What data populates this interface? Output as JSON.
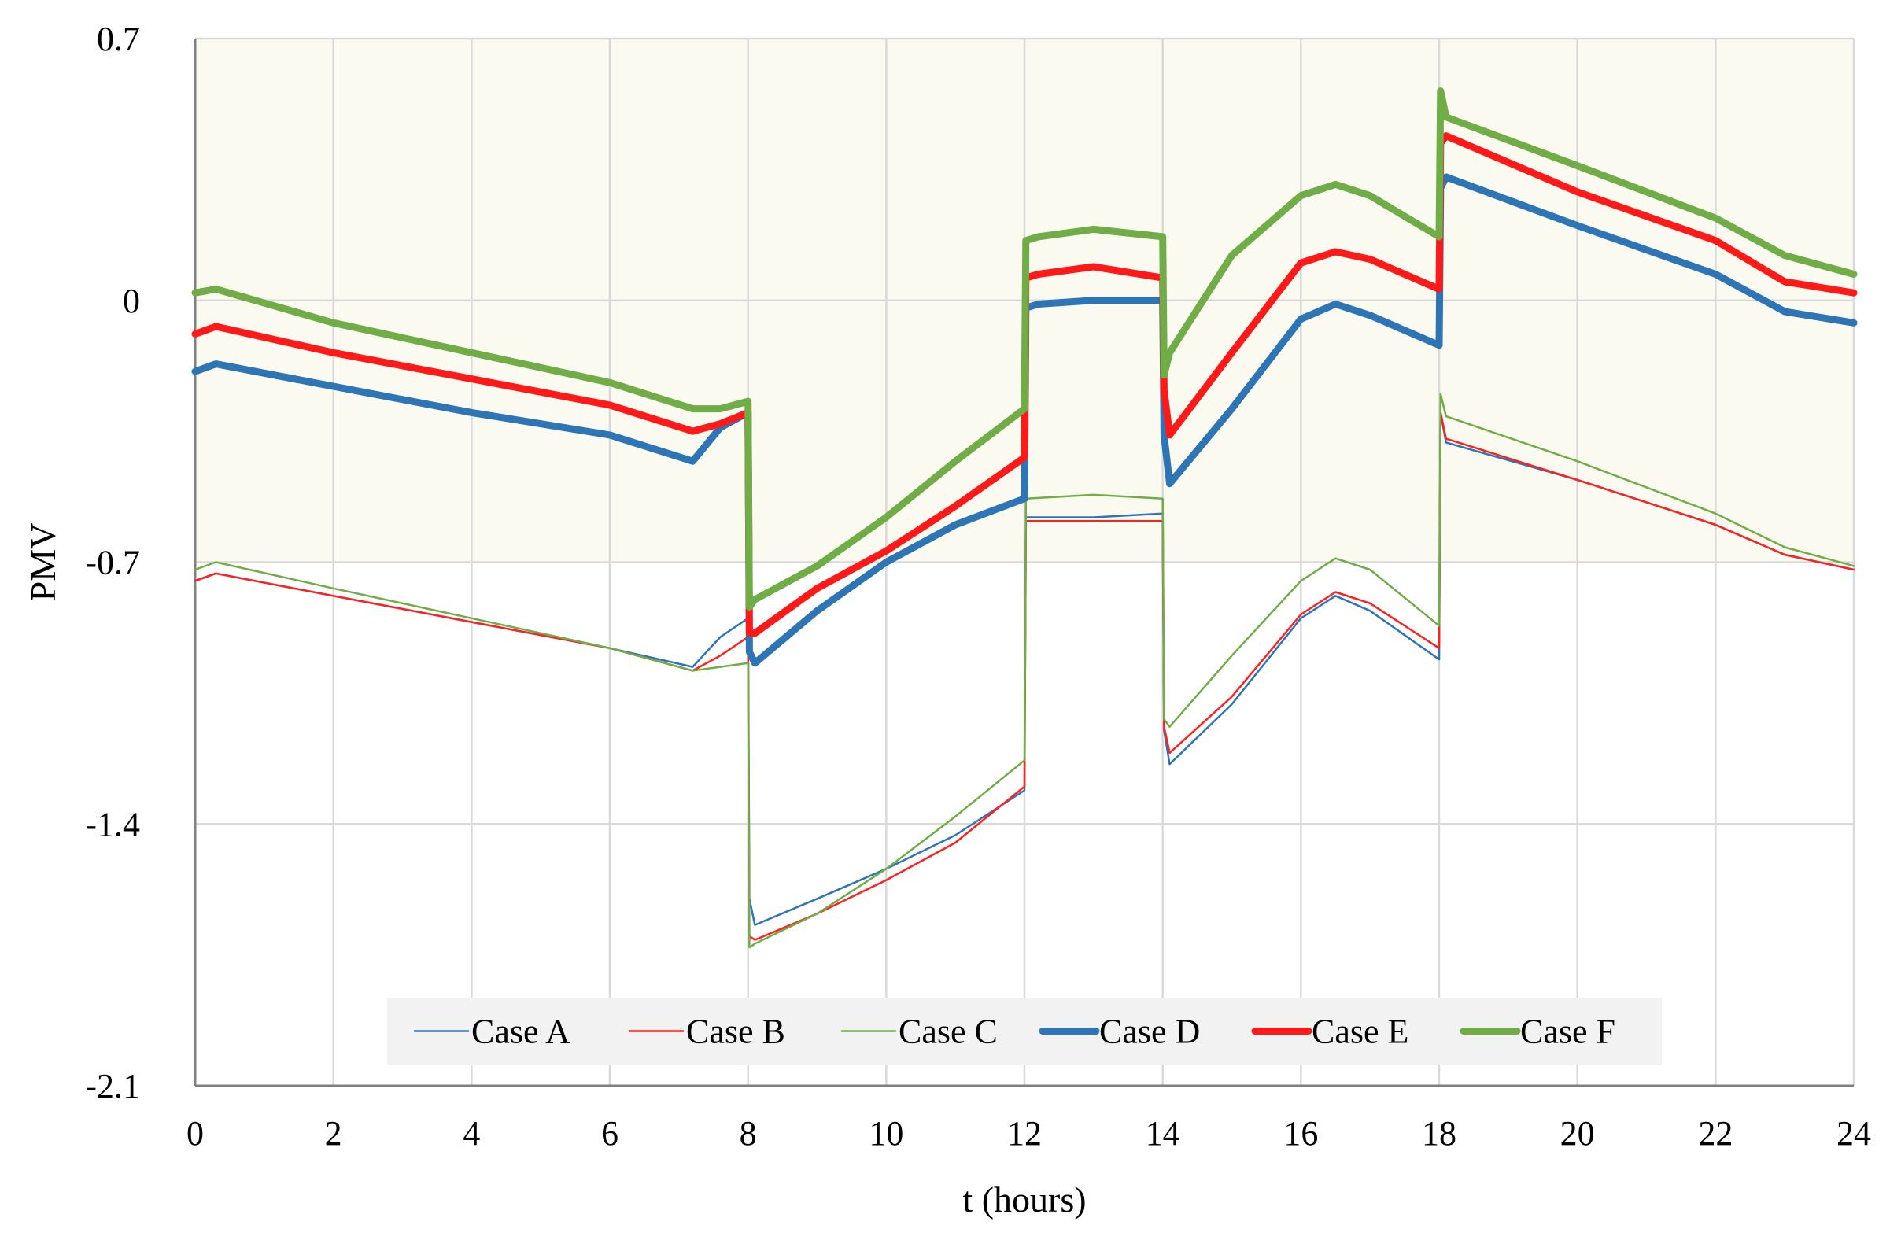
{
  "chart_data": {
    "type": "line",
    "title": "",
    "xlabel": "t (hours)",
    "ylabel": "PMV",
    "xlim": [
      0,
      24
    ],
    "ylim": [
      -2.1,
      0.7
    ],
    "xticks": [
      0,
      2,
      4,
      6,
      8,
      10,
      12,
      14,
      16,
      18,
      20,
      22,
      24
    ],
    "yticks": [
      0.7,
      0,
      -0.7,
      -1.4,
      -2.1
    ],
    "xtick_labels": [
      "0",
      "2",
      "4",
      "6",
      "8",
      "10",
      "12",
      "14",
      "16",
      "18",
      "20",
      "22",
      "24"
    ],
    "ytick_labels": [
      "0.7",
      "0",
      "-0.7",
      "-1.4",
      "-2.1"
    ],
    "grid": true,
    "comfort_band": {
      "from": -0.7,
      "to": 0.7,
      "color": "#fbfaf0"
    },
    "legend_position": "bottom-center",
    "series": [
      {
        "name": "Case A",
        "color": "#2e75b6",
        "width": "thin",
        "x": [
          0,
          0.3,
          2,
          4,
          6,
          7.2,
          7.6,
          8,
          8.02,
          8.1,
          9,
          10,
          11,
          12,
          12.02,
          13,
          14,
          14.02,
          14.1,
          15,
          16,
          16.5,
          17,
          18,
          18.02,
          18.1,
          20,
          22,
          23,
          24
        ],
        "values": [
          -0.75,
          -0.73,
          -0.79,
          -0.86,
          -0.93,
          -0.98,
          -0.9,
          -0.85,
          -1.6,
          -1.67,
          -1.6,
          -1.52,
          -1.43,
          -1.31,
          -0.58,
          -0.58,
          -0.57,
          -1.15,
          -1.24,
          -1.08,
          -0.85,
          -0.79,
          -0.83,
          -0.96,
          -0.3,
          -0.38,
          -0.48,
          -0.6,
          -0.68,
          -0.72
        ]
      },
      {
        "name": "Case B",
        "color": "#ff2020",
        "width": "thin",
        "x": [
          0,
          0.3,
          2,
          4,
          6,
          7.2,
          7.6,
          8,
          8.02,
          8.1,
          9,
          10,
          11,
          12,
          12.02,
          13,
          14,
          14.02,
          14.1,
          15,
          16,
          16.5,
          17,
          18,
          18.02,
          18.1,
          20,
          22,
          23,
          24
        ],
        "values": [
          -0.75,
          -0.73,
          -0.79,
          -0.86,
          -0.93,
          -0.99,
          -0.95,
          -0.9,
          -1.7,
          -1.71,
          -1.64,
          -1.55,
          -1.45,
          -1.3,
          -0.59,
          -0.59,
          -0.59,
          -1.14,
          -1.21,
          -1.06,
          -0.84,
          -0.78,
          -0.81,
          -0.93,
          -0.3,
          -0.37,
          -0.48,
          -0.6,
          -0.68,
          -0.72
        ]
      },
      {
        "name": "Case C",
        "color": "#70ad47",
        "width": "thin",
        "x": [
          0,
          0.3,
          2,
          4,
          6,
          7.2,
          7.6,
          8,
          8.02,
          8.1,
          9,
          10,
          11,
          12,
          12.02,
          13,
          14,
          14.02,
          14.1,
          15,
          16,
          16.5,
          17,
          18,
          18.02,
          18.1,
          20,
          22,
          23,
          24
        ],
        "values": [
          -0.72,
          -0.7,
          -0.77,
          -0.85,
          -0.93,
          -0.99,
          -0.98,
          -0.97,
          -1.73,
          -1.72,
          -1.64,
          -1.52,
          -1.38,
          -1.23,
          -0.53,
          -0.52,
          -0.53,
          -1.12,
          -1.14,
          -0.95,
          -0.75,
          -0.69,
          -0.72,
          -0.87,
          -0.25,
          -0.31,
          -0.43,
          -0.57,
          -0.66,
          -0.71
        ]
      },
      {
        "name": "Case D",
        "color": "#2e75b6",
        "width": "thick",
        "x": [
          0,
          0.3,
          2,
          4,
          6,
          7.2,
          7.6,
          8,
          8.02,
          8.1,
          9,
          10,
          11,
          12,
          12.02,
          12.2,
          13,
          14,
          14.02,
          14.1,
          15,
          16,
          16.5,
          17,
          18,
          18.02,
          18.1,
          20,
          22,
          23,
          24
        ],
        "values": [
          -0.19,
          -0.17,
          -0.23,
          -0.3,
          -0.36,
          -0.43,
          -0.34,
          -0.3,
          -0.94,
          -0.97,
          -0.83,
          -0.7,
          -0.6,
          -0.53,
          -0.02,
          -0.01,
          0.0,
          0.0,
          -0.36,
          -0.49,
          -0.29,
          -0.05,
          -0.01,
          -0.04,
          -0.12,
          0.3,
          0.33,
          0.2,
          0.07,
          -0.03,
          -0.06
        ]
      },
      {
        "name": "Case E",
        "color": "#ff1a1a",
        "width": "thick",
        "x": [
          0,
          0.3,
          2,
          4,
          6,
          7.2,
          7.6,
          8,
          8.02,
          8.1,
          9,
          10,
          11,
          12,
          12.02,
          12.2,
          13,
          14,
          14.02,
          14.1,
          15,
          16,
          16.5,
          17,
          18,
          18.02,
          18.1,
          20,
          22,
          23,
          24
        ],
        "values": [
          -0.09,
          -0.07,
          -0.14,
          -0.21,
          -0.28,
          -0.35,
          -0.33,
          -0.3,
          -0.89,
          -0.89,
          -0.77,
          -0.67,
          -0.55,
          -0.42,
          0.06,
          0.07,
          0.09,
          0.06,
          -0.24,
          -0.36,
          -0.14,
          0.1,
          0.13,
          0.11,
          0.03,
          0.42,
          0.44,
          0.29,
          0.16,
          0.05,
          0.02
        ]
      },
      {
        "name": "Case F",
        "color": "#70ad47",
        "width": "thick",
        "x": [
          0,
          0.3,
          2,
          4,
          6,
          7.2,
          7.6,
          8,
          8.02,
          8.1,
          9,
          10,
          11,
          12,
          12.02,
          12.2,
          13,
          14,
          14.02,
          14.1,
          15,
          16,
          16.5,
          17,
          18,
          18.02,
          18.1,
          20,
          22,
          23,
          24
        ],
        "values": [
          0.02,
          0.03,
          -0.06,
          -0.14,
          -0.22,
          -0.29,
          -0.29,
          -0.27,
          -0.82,
          -0.8,
          -0.71,
          -0.58,
          -0.43,
          -0.29,
          0.16,
          0.17,
          0.19,
          0.17,
          -0.2,
          -0.14,
          0.12,
          0.28,
          0.31,
          0.28,
          0.17,
          0.56,
          0.49,
          0.36,
          0.22,
          0.12,
          0.07
        ]
      }
    ]
  }
}
